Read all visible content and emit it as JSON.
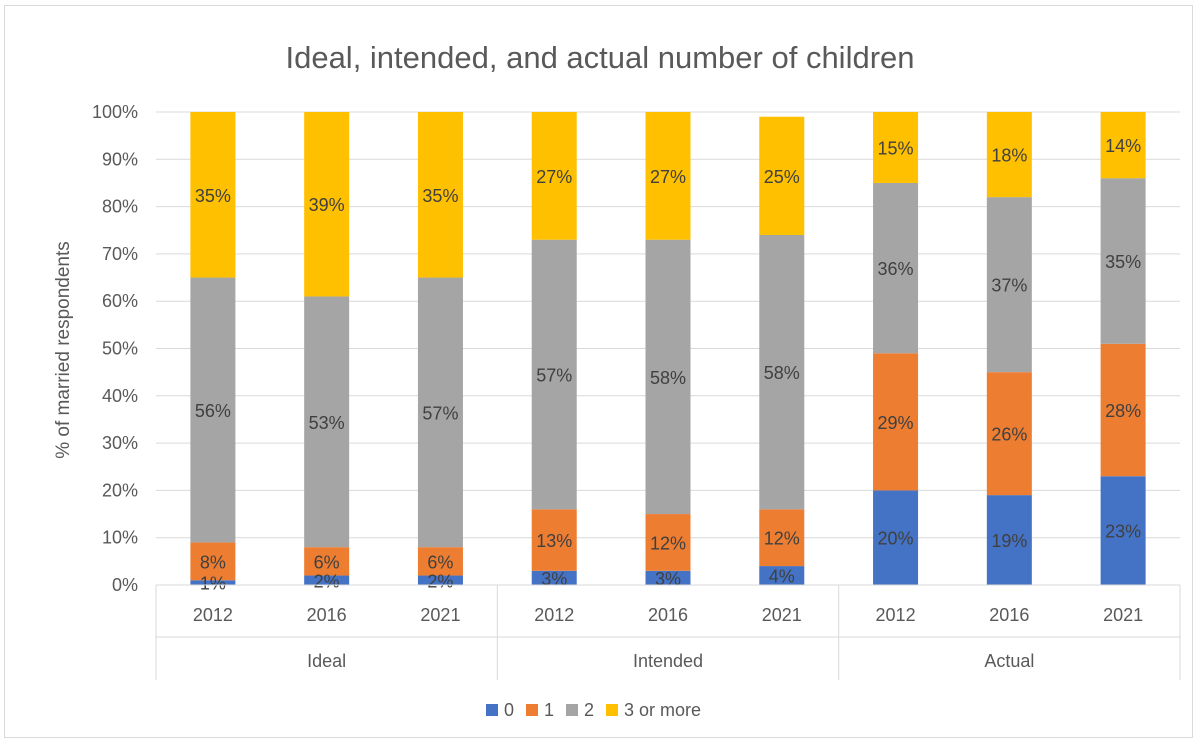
{
  "chart_data": {
    "type": "bar",
    "stacked": true,
    "title": "Ideal, intended, and actual number of children",
    "ylabel": "% of married respondents",
    "xlabel": "",
    "ylim": [
      0,
      100
    ],
    "y_ticks": [
      "0%",
      "10%",
      "20%",
      "30%",
      "40%",
      "50%",
      "60%",
      "70%",
      "80%",
      "90%",
      "100%"
    ],
    "grid": true,
    "legend_position": "bottom",
    "groups": [
      "Ideal",
      "Intended",
      "Actual"
    ],
    "categories": [
      "2012",
      "2016",
      "2021",
      "2012",
      "2016",
      "2021",
      "2012",
      "2016",
      "2021"
    ],
    "series": [
      {
        "name": "0",
        "color": "#4472c4",
        "values": [
          1,
          2,
          2,
          3,
          3,
          4,
          20,
          19,
          23
        ],
        "labels": [
          "1%",
          "2%",
          "2%",
          "3%",
          "3%",
          "4%",
          "20%",
          "19%",
          "23%"
        ]
      },
      {
        "name": "1",
        "color": "#ed7d31",
        "values": [
          8,
          6,
          6,
          13,
          12,
          12,
          29,
          26,
          28
        ],
        "labels": [
          "8%",
          "6%",
          "6%",
          "13%",
          "12%",
          "12%",
          "29%",
          "26%",
          "28%"
        ]
      },
      {
        "name": "2",
        "color": "#a5a5a5",
        "values": [
          56,
          53,
          57,
          57,
          58,
          58,
          36,
          37,
          35
        ],
        "labels": [
          "56%",
          "53%",
          "57%",
          "57%",
          "58%",
          "58%",
          "36%",
          "37%",
          "35%"
        ]
      },
      {
        "name": "3 or more",
        "color": "#ffc000",
        "values": [
          35,
          39,
          35,
          27,
          27,
          25,
          15,
          18,
          14
        ],
        "labels": [
          "35%",
          "39%",
          "35%",
          "27%",
          "27%",
          "25%",
          "15%",
          "18%",
          "14%"
        ]
      }
    ]
  }
}
